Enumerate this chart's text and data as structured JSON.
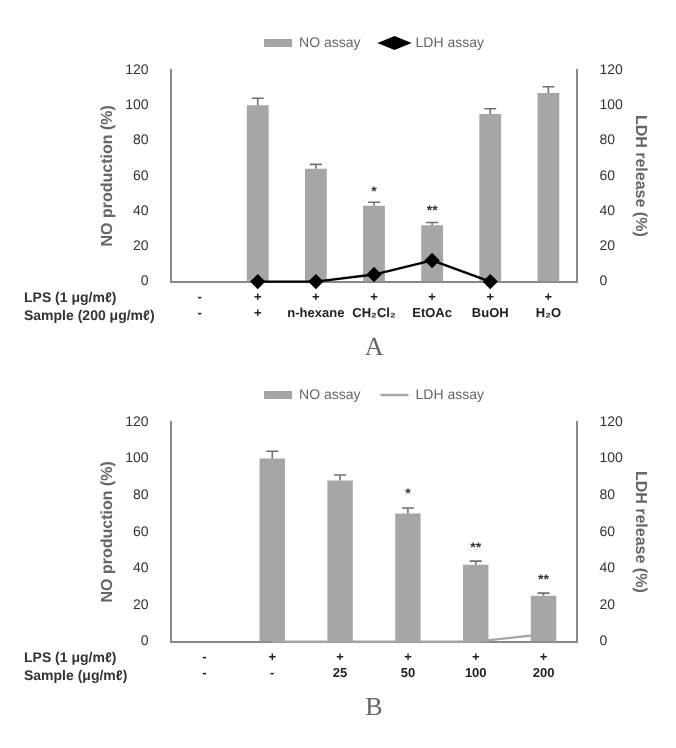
{
  "chart_data": [
    {
      "type": "bar",
      "title": "A",
      "ylabel": "NO production (%)",
      "y2label": "LDH release (%)",
      "categories": [
        "-\n-",
        "+\n+",
        "+\nn-hexane",
        "+\nCH₂Cl₂",
        "+\nEtOAc",
        "+\nBuOH",
        "+\nH₂O"
      ],
      "series": [
        {
          "name": "NO assay",
          "color": "#a6a6a6",
          "values": [
            null,
            100,
            64,
            43,
            32,
            95,
            107
          ],
          "errors": [
            null,
            4,
            2.5,
            2,
            1.5,
            3,
            3.5
          ]
        },
        {
          "name": "LDH assay",
          "type": "line",
          "axis": "y2",
          "color": "#000000",
          "marker": "diamond",
          "values": [
            null,
            0,
            0,
            4,
            12,
            0,
            null
          ]
        }
      ],
      "ylim": [
        0,
        120
      ],
      "yticks": [
        0,
        20,
        40,
        60,
        80,
        100,
        120
      ],
      "y2lim": [
        0,
        120
      ],
      "y2ticks": [
        0,
        20,
        40,
        60,
        80,
        100,
        120
      ],
      "grid": false,
      "legend": "top",
      "annotations": [
        "LPS (1 μg/mℓ)",
        "Sample (200 μg/mℓ)",
        {
          "text": "*",
          "x": "+\nCH₂Cl₂",
          "y": 47
        },
        {
          "text": "**",
          "x": "+\nEtOAc",
          "y": 36
        }
      ]
    },
    {
      "type": "bar",
      "title": "B",
      "ylabel": "NO production (%)",
      "y2label": "LDH release (%)",
      "categories": [
        "-\n-",
        "+\n-",
        "+\n25",
        "+\n50",
        "+\n100",
        "+\n200"
      ],
      "series": [
        {
          "name": "NO assay",
          "color": "#a6a6a6",
          "values": [
            null,
            100,
            88,
            70,
            42,
            25
          ],
          "errors": [
            null,
            4,
            3,
            3,
            2,
            1.5
          ]
        },
        {
          "name": "LDH assay",
          "type": "line",
          "axis": "y2",
          "color": "#a6a6a6",
          "marker": "none",
          "values": [
            null,
            0,
            0,
            0,
            0,
            4
          ]
        }
      ],
      "ylim": [
        0,
        120
      ],
      "yticks": [
        0,
        20,
        40,
        60,
        80,
        100,
        120
      ],
      "y2lim": [
        0,
        120
      ],
      "y2ticks": [
        0,
        20,
        40,
        60,
        80,
        100,
        120
      ],
      "grid": false,
      "legend": "top",
      "annotations": [
        "LPS (1 μg/mℓ)",
        "Sample (μg/mℓ)",
        {
          "text": "*",
          "x": "+\n50",
          "y": 77
        },
        {
          "text": "**",
          "x": "+\n100",
          "y": 47
        },
        {
          "text": "**",
          "x": "+\n200",
          "y": 30
        }
      ]
    }
  ]
}
